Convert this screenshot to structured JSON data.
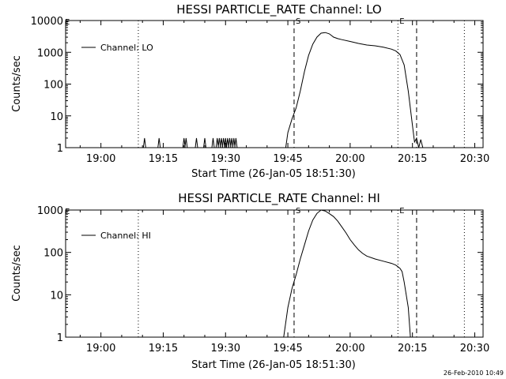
{
  "footer_text": "26-Feb-2010 10:49",
  "chart_data": [
    {
      "type": "line",
      "title": "HESSI PARTICLE_RATE Channel: LO",
      "xlabel": "Start Time (26-Jan-05 18:51:30)",
      "ylabel": "Counts/sec",
      "yscale": "log",
      "ylim": [
        1,
        10000
      ],
      "y_ticks": [
        "1",
        "10",
        "100",
        "1000",
        "10000"
      ],
      "y_tick_values": [
        1,
        10,
        100,
        1000,
        10000
      ],
      "xlim": [
        "18:51:30",
        "20:32:00"
      ],
      "x_ticks": [
        "19:00",
        "19:15",
        "19:30",
        "19:45",
        "20:00",
        "20:15",
        "20:30"
      ],
      "legend": {
        "entry": "Channel: LO",
        "placement": "top-left"
      },
      "corner_mark": "E",
      "markers": [
        {
          "time": "19:09:00",
          "style": "dotted",
          "label": ""
        },
        {
          "time": "19:46:30",
          "style": "dashed",
          "label": "S"
        },
        {
          "time": "20:11:30",
          "style": "dotted",
          "label": "E"
        },
        {
          "time": "20:16:00",
          "style": "dashed",
          "label": ""
        },
        {
          "time": "20:27:30",
          "style": "dotted",
          "label": ""
        }
      ],
      "spikes": [
        "19:10:30",
        "19:14:00",
        "19:20:00",
        "19:20:30",
        "19:23:00",
        "19:25:00",
        "19:27:00",
        "19:28:00",
        "19:28:30",
        "19:29:00",
        "19:29:30",
        "19:30:00",
        "19:30:30",
        "19:31:00",
        "19:31:30",
        "19:32:00",
        "19:32:30"
      ],
      "series": [
        {
          "name": "Channel: LO",
          "points": [
            [
              "19:44:30",
              1
            ],
            [
              "19:45:00",
              3
            ],
            [
              "19:46:00",
              8
            ],
            [
              "19:47:00",
              18
            ],
            [
              "19:48:00",
              60
            ],
            [
              "19:49:00",
              250
            ],
            [
              "19:50:00",
              800
            ],
            [
              "19:51:00",
              1800
            ],
            [
              "19:52:00",
              3000
            ],
            [
              "19:53:00",
              4000
            ],
            [
              "19:54:00",
              4200
            ],
            [
              "19:55:00",
              3800
            ],
            [
              "19:56:00",
              3000
            ],
            [
              "19:57:00",
              2700
            ],
            [
              "19:58:00",
              2500
            ],
            [
              "20:00:00",
              2200
            ],
            [
              "20:02:00",
              1900
            ],
            [
              "20:04:00",
              1700
            ],
            [
              "20:06:00",
              1600
            ],
            [
              "20:08:00",
              1450
            ],
            [
              "20:10:00",
              1250
            ],
            [
              "20:11:00",
              1100
            ],
            [
              "20:12:00",
              850
            ],
            [
              "20:13:00",
              400
            ],
            [
              "20:14:00",
              60
            ],
            [
              "20:15:00",
              5
            ],
            [
              "20:15:30",
              1.5
            ],
            [
              "20:16:00",
              2
            ],
            [
              "20:16:30",
              1
            ],
            [
              "20:17:00",
              1.8
            ],
            [
              "20:17:30",
              1
            ]
          ]
        }
      ]
    },
    {
      "type": "line",
      "title": "HESSI PARTICLE_RATE Channel: HI",
      "xlabel": "Start Time (26-Jan-05 18:51:30)",
      "ylabel": "Counts/sec",
      "yscale": "log",
      "ylim": [
        1,
        1000
      ],
      "y_ticks": [
        "1",
        "10",
        "100",
        "1000"
      ],
      "y_tick_values": [
        1,
        10,
        100,
        1000
      ],
      "xlim": [
        "18:51:30",
        "20:32:00"
      ],
      "x_ticks": [
        "19:00",
        "19:15",
        "19:30",
        "19:45",
        "20:00",
        "20:15",
        "20:30"
      ],
      "legend": {
        "entry": "Channel: HI",
        "placement": "top-left"
      },
      "corner_mark": "E",
      "markers": [
        {
          "time": "19:09:00",
          "style": "dotted",
          "label": ""
        },
        {
          "time": "19:46:30",
          "style": "dashed",
          "label": "S"
        },
        {
          "time": "20:11:30",
          "style": "dotted",
          "label": "E"
        },
        {
          "time": "20:16:00",
          "style": "dashed",
          "label": ""
        },
        {
          "time": "20:27:30",
          "style": "dotted",
          "label": ""
        }
      ],
      "spikes": [],
      "series": [
        {
          "name": "Channel: HI",
          "points": [
            [
              "19:44:00",
              1
            ],
            [
              "19:45:00",
              5
            ],
            [
              "19:46:00",
              14
            ],
            [
              "19:47:00",
              30
            ],
            [
              "19:48:00",
              70
            ],
            [
              "19:49:00",
              150
            ],
            [
              "19:50:00",
              320
            ],
            [
              "19:51:00",
              580
            ],
            [
              "19:52:00",
              830
            ],
            [
              "19:53:00",
              1000
            ],
            [
              "19:54:00",
              950
            ],
            [
              "19:55:00",
              820
            ],
            [
              "19:56:00",
              700
            ],
            [
              "19:57:00",
              550
            ],
            [
              "19:58:00",
              400
            ],
            [
              "19:59:00",
              290
            ],
            [
              "20:00:00",
              200
            ],
            [
              "20:01:00",
              150
            ],
            [
              "20:02:00",
              115
            ],
            [
              "20:03:00",
              95
            ],
            [
              "20:04:00",
              82
            ],
            [
              "20:06:00",
              70
            ],
            [
              "20:08:00",
              62
            ],
            [
              "20:10:00",
              55
            ],
            [
              "20:11:00",
              50
            ],
            [
              "20:12:00",
              42
            ],
            [
              "20:12:30",
              35
            ],
            [
              "20:13:00",
              20
            ],
            [
              "20:14:00",
              5
            ],
            [
              "20:14:30",
              1
            ]
          ]
        }
      ]
    }
  ]
}
